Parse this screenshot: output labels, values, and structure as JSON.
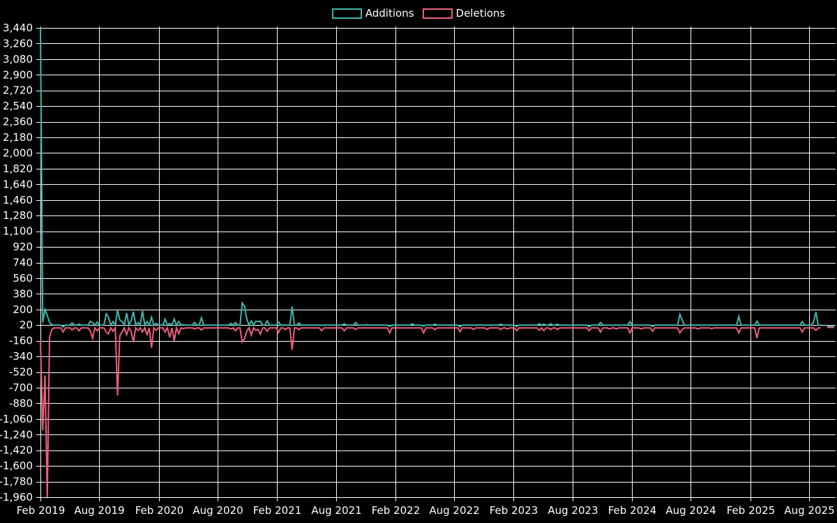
{
  "chart_data": {
    "type": "line",
    "title": "",
    "legend": {
      "position": "top-center",
      "items": [
        "Additions",
        "Deletions"
      ]
    },
    "x_ticks": [
      "Feb 2019",
      "Aug 2019",
      "Feb 2020",
      "Aug 2020",
      "Feb 2021",
      "Aug 2021",
      "Feb 2022",
      "Aug 2022",
      "Feb 2023",
      "Aug 2023",
      "Feb 2024",
      "Aug 2024",
      "Feb 2025",
      "Aug 2025"
    ],
    "y_ticks": [
      3440,
      3260,
      3080,
      2900,
      2720,
      2540,
      2360,
      2180,
      2000,
      1820,
      1640,
      1460,
      1280,
      1100,
      920,
      740,
      560,
      380,
      200,
      20,
      -160,
      -340,
      -520,
      -700,
      -880,
      -1060,
      -1240,
      -1420,
      -1600,
      -1780,
      -1960
    ],
    "ylim": [
      -1960,
      3440
    ],
    "interval": "weekly",
    "weeks": 351,
    "gaps": [
      345,
      346
    ],
    "grid": true,
    "colors": {
      "background": "#000000",
      "grid": "#ffffff",
      "text": "#ffffff",
      "additions": "#3fb6ad",
      "deletions": "#ee5f7d"
    },
    "series": [
      {
        "name": "Additions",
        "color": "#3fb6ad",
        "baseline": 20,
        "points": {
          "0": 3440,
          "1": 50,
          "2": 200,
          "3": 130,
          "4": 50,
          "5": 25,
          "10": 0,
          "14": 45,
          "17": 30,
          "22": 65,
          "23": 45,
          "25": 55,
          "29": 150,
          "30": 110,
          "32": 60,
          "34": 190,
          "35": 80,
          "36": 60,
          "38": 160,
          "40": 70,
          "41": 175,
          "43": 50,
          "45": 185,
          "47": 60,
          "49": 110,
          "51": 40,
          "55": 90,
          "57": 40,
          "59": 90,
          "61": 60,
          "63": 25,
          "68": 50,
          "71": 105,
          "84": 40,
          "86": 50,
          "89": 275,
          "90": 235,
          "91": 90,
          "93": 70,
          "95": 65,
          "96": 60,
          "97": 65,
          "100": 70,
          "105": 55,
          "111": 235,
          "114": 45,
          "134": 35,
          "139": 50,
          "144": 25,
          "154": 5,
          "164": 35,
          "169": 10,
          "174": 30,
          "185": 0,
          "203": 30,
          "210": 5,
          "220": 35,
          "222": 30,
          "225": 35,
          "228": 30,
          "242": 0,
          "247": 50,
          "260": 60,
          "270": 5,
          "282": 145,
          "283": 80,
          "308": 120,
          "316": 65,
          "336": 60,
          "341": 60,
          "342": 170,
          "347": 10,
          "348": 10,
          "349": 10,
          "350": 10
        }
      },
      {
        "name": "Deletions",
        "color": "#ee5f7d",
        "baseline": -12,
        "points": {
          "0": -160,
          "1": -1190,
          "2": -560,
          "3": -1960,
          "4": -120,
          "5": -30,
          "10": -60,
          "14": -35,
          "17": -45,
          "22": -50,
          "23": -130,
          "25": -45,
          "29": -60,
          "30": -80,
          "32": -50,
          "34": -790,
          "35": -100,
          "36": -60,
          "38": -90,
          "40": -50,
          "41": -175,
          "43": -40,
          "45": -60,
          "47": -90,
          "49": -240,
          "51": -40,
          "55": -60,
          "57": -120,
          "59": -160,
          "61": -80,
          "63": -20,
          "68": -25,
          "71": -35,
          "84": -25,
          "86": -45,
          "89": -175,
          "90": -135,
          "91": -50,
          "93": -95,
          "95": -40,
          "96": -30,
          "97": -85,
          "100": -50,
          "105": -65,
          "108": -30,
          "111": -265,
          "114": -30,
          "124": -45,
          "134": -45,
          "139": -30,
          "154": -70,
          "169": -70,
          "174": -30,
          "185": -55,
          "191": -30,
          "197": -30,
          "203": -30,
          "206": -25,
          "210": -45,
          "220": -40,
          "222": -45,
          "225": -30,
          "228": -30,
          "242": -45,
          "247": -60,
          "251": -25,
          "254": -25,
          "260": -70,
          "265": -25,
          "270": -50,
          "282": -70,
          "283": -30,
          "290": -25,
          "296": -20,
          "308": -70,
          "316": -130,
          "336": -60,
          "342": -40,
          "347": -6,
          "348": -6,
          "349": -6,
          "350": -6
        }
      }
    ]
  }
}
